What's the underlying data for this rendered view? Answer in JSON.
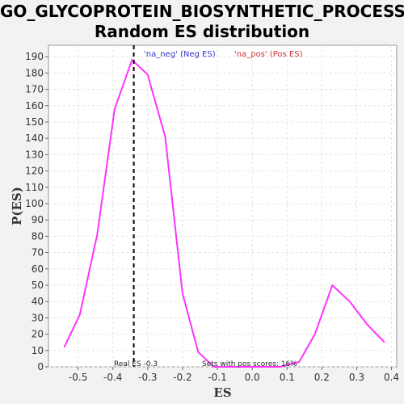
{
  "title_line1": "GO_GLYCOPROTEIN_BIOSYNTHETIC_PROCESS:",
  "title_line2": "Random ES distribution",
  "chart_data": {
    "type": "line",
    "xlabel": "ES",
    "ylabel": "P(ES)",
    "xlim": [
      -0.585,
      0.415
    ],
    "ylim": [
      0,
      197
    ],
    "xticks": [
      -0.5,
      -0.4,
      -0.3,
      -0.2,
      -0.1,
      0.0,
      0.1,
      0.2,
      0.3,
      0.4
    ],
    "xtick_labels": [
      "-0.5",
      "-0.4",
      "-0.3",
      "-0.2",
      "-0.1",
      "0.0",
      "0.1",
      "0.2",
      "0.3",
      "0.4"
    ],
    "yticks": [
      0,
      10,
      20,
      30,
      40,
      50,
      60,
      70,
      80,
      90,
      100,
      110,
      120,
      130,
      140,
      150,
      160,
      170,
      180,
      190
    ],
    "grid": true,
    "series": [
      {
        "color": "#ff33ff",
        "x": [
          -0.54,
          -0.495,
          -0.445,
          -0.395,
          -0.345,
          -0.3,
          -0.25,
          -0.2,
          -0.155,
          -0.11,
          -0.06,
          -0.02,
          0.03,
          0.08,
          0.135,
          0.18,
          0.23,
          0.28,
          0.33,
          0.38
        ],
        "y": [
          12,
          32,
          81,
          158,
          188,
          179,
          141,
          45,
          9,
          0,
          0,
          0,
          0,
          0,
          3,
          20,
          50,
          40,
          26,
          15
        ]
      }
    ],
    "real_es": -0.34,
    "real_es_label": "Real ES -0.3",
    "pos_scores_label": "Sets with pos scores: 16%",
    "legend": [
      {
        "label": "'na_neg' (Neg ES)",
        "color": "#3333cc"
      },
      {
        "label": "'na_pos' (Pos ES)",
        "color": "#cc3333"
      }
    ],
    "legend_placement": "top"
  }
}
